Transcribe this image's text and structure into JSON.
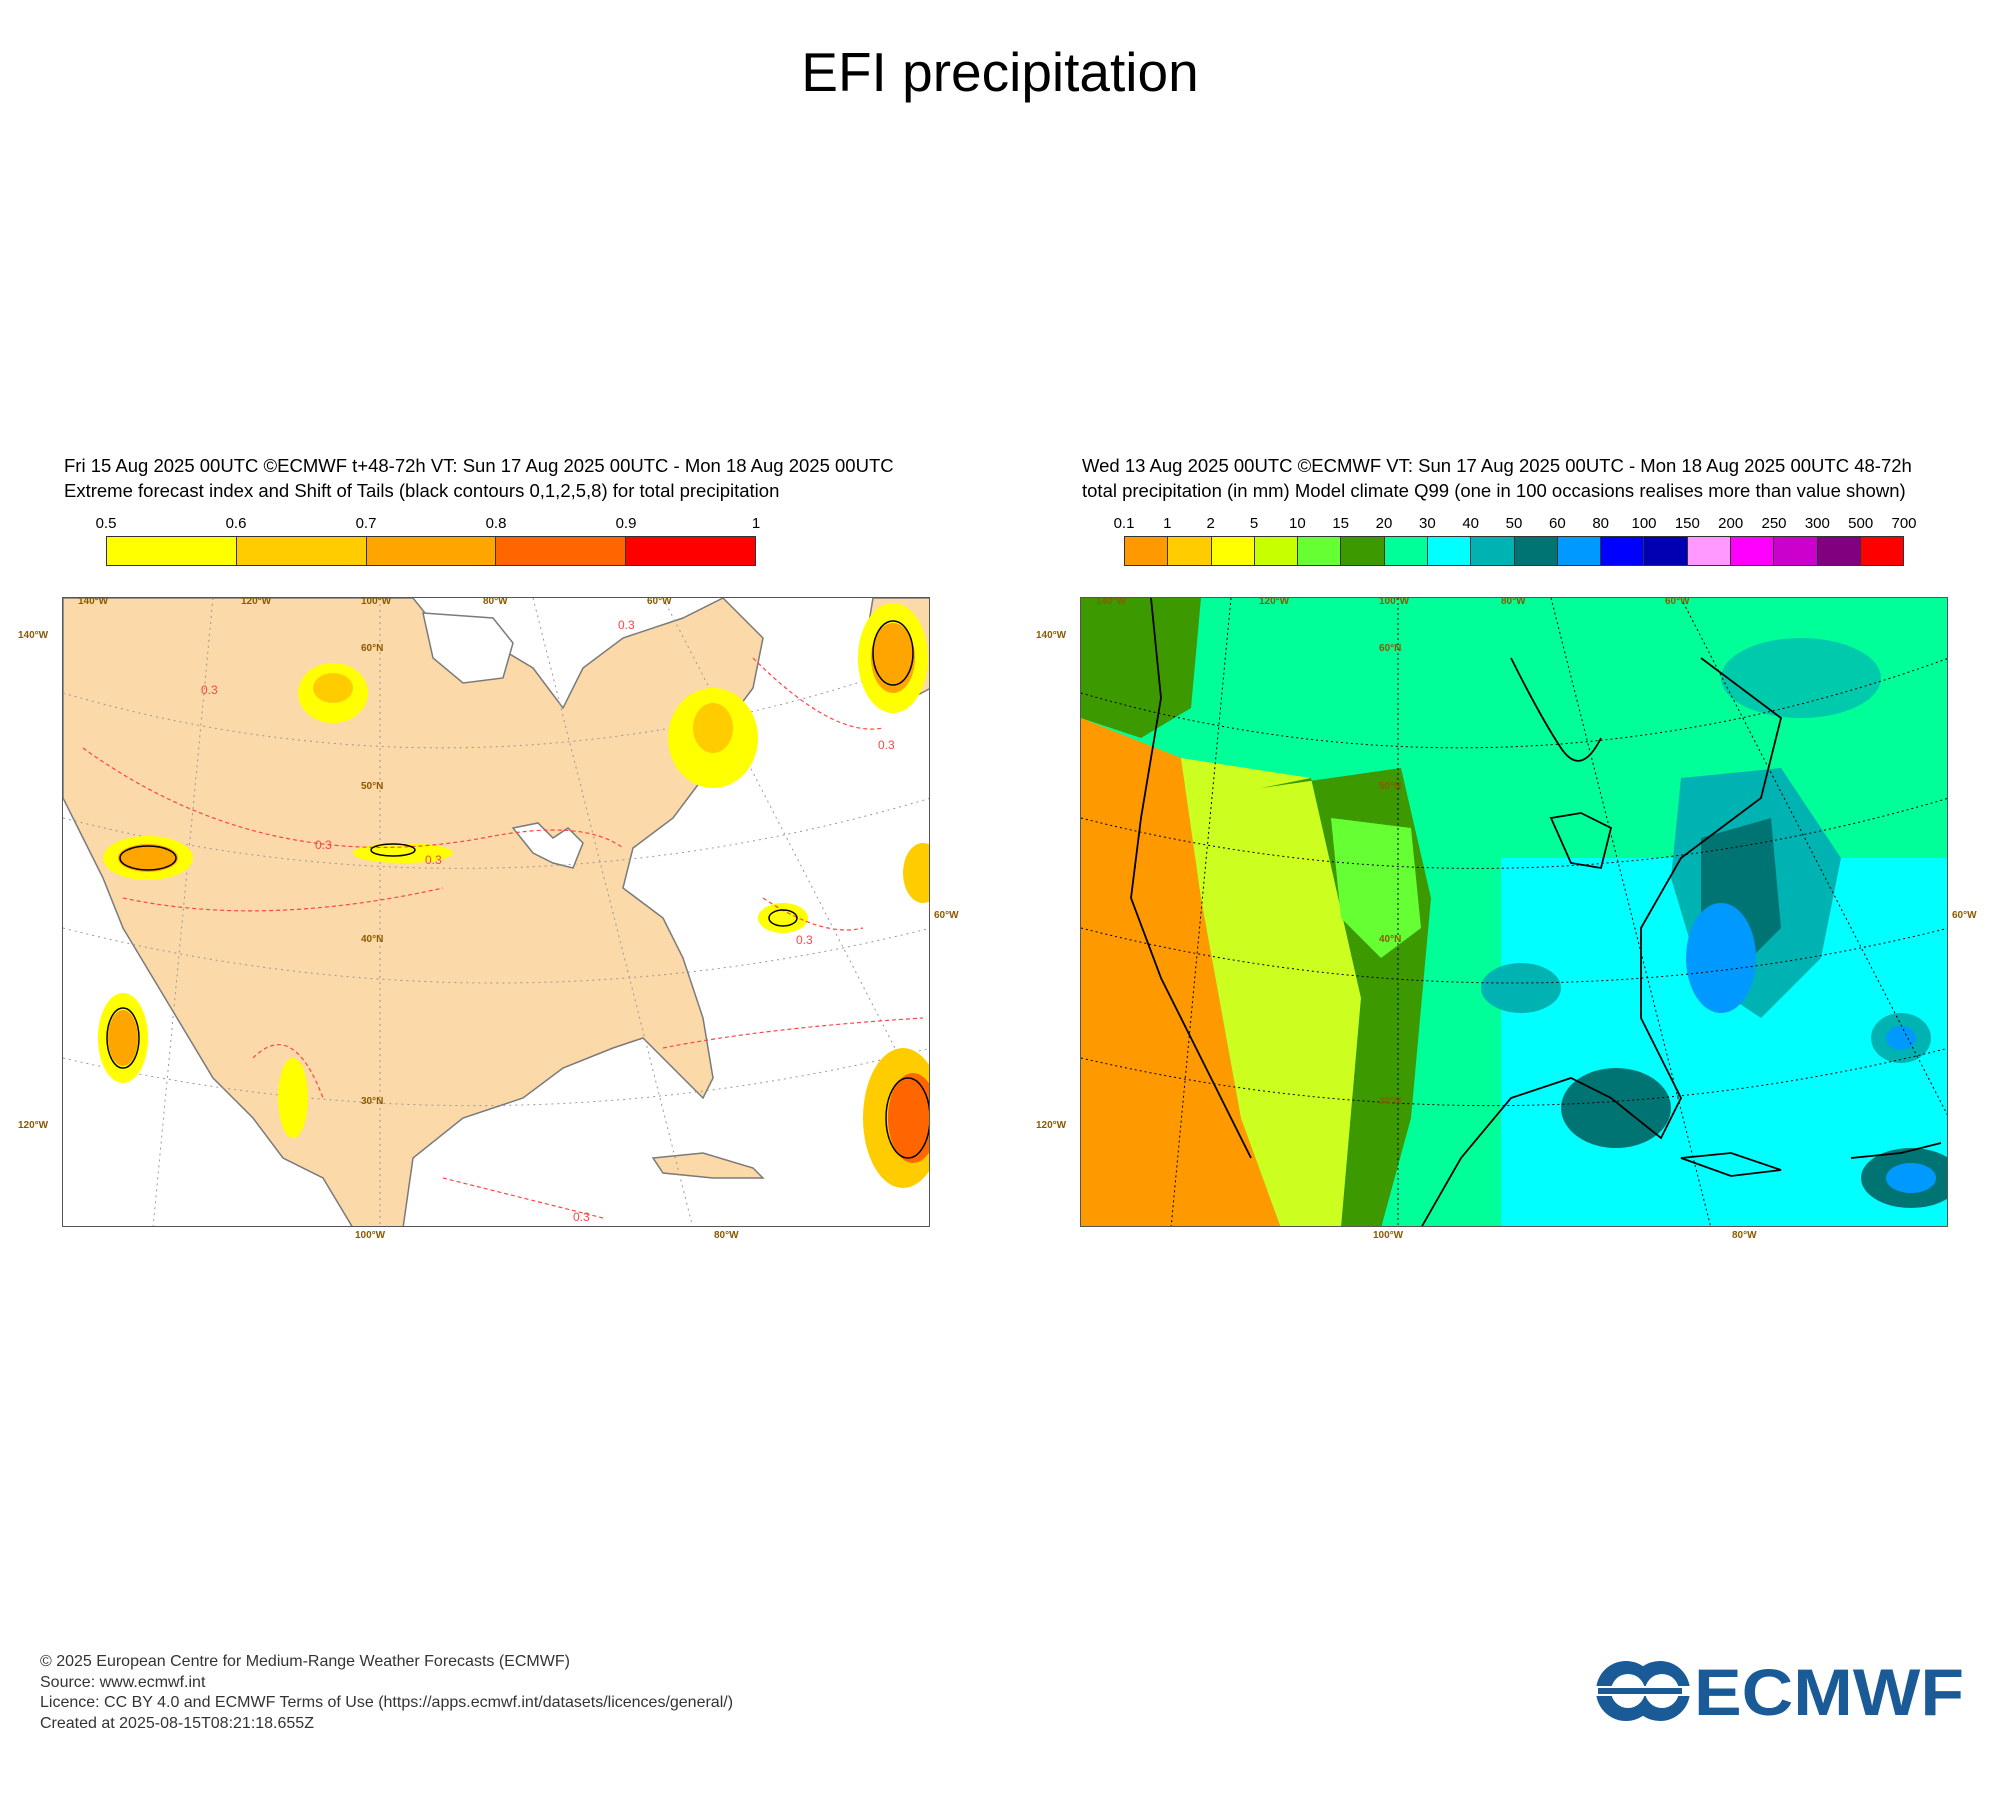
{
  "page": {
    "title": "EFI precipitation"
  },
  "left_panel": {
    "header_line1": "Fri 15 Aug 2025 00UTC ©ECMWF t+48-72h  VT: Sun 17 Aug 2025 00UTC - Mon 18 Aug 2025 00UTC",
    "header_line2": "Extreme forecast index and Shift of Tails (black contours 0,1,2,5,8) for total precipitation",
    "colorbar": {
      "labels": [
        "0.5",
        "0.6",
        "0.7",
        "0.8",
        "0.9",
        "1"
      ],
      "colors": [
        "#ffff00",
        "#ffcc00",
        "#ffa500",
        "#ff6600",
        "#ff0000"
      ]
    },
    "lon_labels_top": [
      "140°W",
      "120°W",
      "100°W",
      "80°W",
      "60°W"
    ],
    "lon_labels_bottom": [
      "100°W",
      "80°W"
    ],
    "lat_labels": [
      "60°N",
      "50°N",
      "40°N",
      "30°N"
    ],
    "side_labels": {
      "left_top": "140°W",
      "left_bottom": "120°W",
      "right": "60°W"
    },
    "contour_labels": [
      "0.3",
      "0.3",
      "0.3",
      "0.3",
      "0.3",
      "0.3",
      "0.3"
    ],
    "colors": {
      "land": "#fbd9a8",
      "sea": "#ffffff",
      "coast": "#7a7a7a",
      "efi_contour": "#ff4444"
    }
  },
  "right_panel": {
    "header_line1": "Wed 13 Aug 2025 00UTC ©ECMWF VT: Sun 17 Aug 2025 00UTC - Mon 18 Aug 2025 00UTC   48-72h",
    "header_line2": "total precipitation (in mm)  Model climate Q99 (one in 100 occasions realises more than value shown)",
    "colorbar": {
      "labels": [
        "0.1",
        "1",
        "2",
        "5",
        "10",
        "15",
        "20",
        "30",
        "40",
        "50",
        "60",
        "80",
        "100",
        "150",
        "200",
        "250",
        "300",
        "500",
        "700"
      ],
      "colors": [
        "#ff9900",
        "#ffcc00",
        "#ffff00",
        "#c8ff00",
        "#66ff33",
        "#3d9900",
        "#00ff99",
        "#00ffff",
        "#00b3b3",
        "#007373",
        "#0099ff",
        "#0000ff",
        "#0000b3",
        "#ff99ff",
        "#ff00ff",
        "#cc00cc",
        "#800080",
        "#ff0000"
      ]
    },
    "lon_labels_top": [
      "140°W",
      "120°W",
      "100°W",
      "80°W",
      "60°W"
    ],
    "lon_labels_bottom": [
      "100°W",
      "80°W"
    ],
    "lat_labels": [
      "60°N",
      "50°N",
      "40°N",
      "30°N"
    ],
    "side_labels": {
      "left_top": "140°W",
      "left_bottom": "120°W",
      "right": "60°W"
    }
  },
  "footer": {
    "line1": "© 2025 European Centre for Medium-Range Weather Forecasts (ECMWF)",
    "line2": "Source: www.ecmwf.int",
    "line3": "Licence: CC BY 4.0 and ECMWF Terms of Use (https://apps.ecmwf.int/datasets/licences/general/)",
    "line4": "Created at 2025-08-15T08:21:18.655Z"
  },
  "logo": {
    "text": "ECMWF",
    "color": "#1a5a96"
  }
}
